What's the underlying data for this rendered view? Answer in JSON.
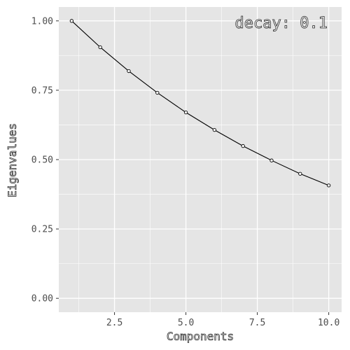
{
  "chart_data": {
    "type": "line",
    "xlabel": "Components",
    "ylabel": "Eigenvalues",
    "annotation": "decay: 0.1",
    "annotation_position": "top-right",
    "xlim": [
      0.55,
      10.45
    ],
    "ylim": [
      -0.05,
      1.05
    ],
    "x_ticks": [
      2.5,
      5.0,
      7.5,
      10.0
    ],
    "x_tick_labels": [
      "2.5",
      "5.0",
      "7.5",
      "10.0"
    ],
    "y_ticks": [
      0.0,
      0.25,
      0.5,
      0.75,
      1.0
    ],
    "y_tick_labels": [
      "0.00",
      "0.25",
      "0.50",
      "0.75",
      "1.00"
    ],
    "grid": true,
    "colors": {
      "panel": "#e5e5e5",
      "grid": "#ffffff",
      "line": "#000000",
      "point_fill": "#ffffff"
    },
    "series": [
      {
        "x": [
          1,
          2,
          3,
          4,
          5,
          6,
          7,
          8,
          9,
          10
        ],
        "y": [
          1.0,
          0.905,
          0.819,
          0.741,
          0.67,
          0.607,
          0.549,
          0.497,
          0.449,
          0.407
        ]
      }
    ]
  }
}
